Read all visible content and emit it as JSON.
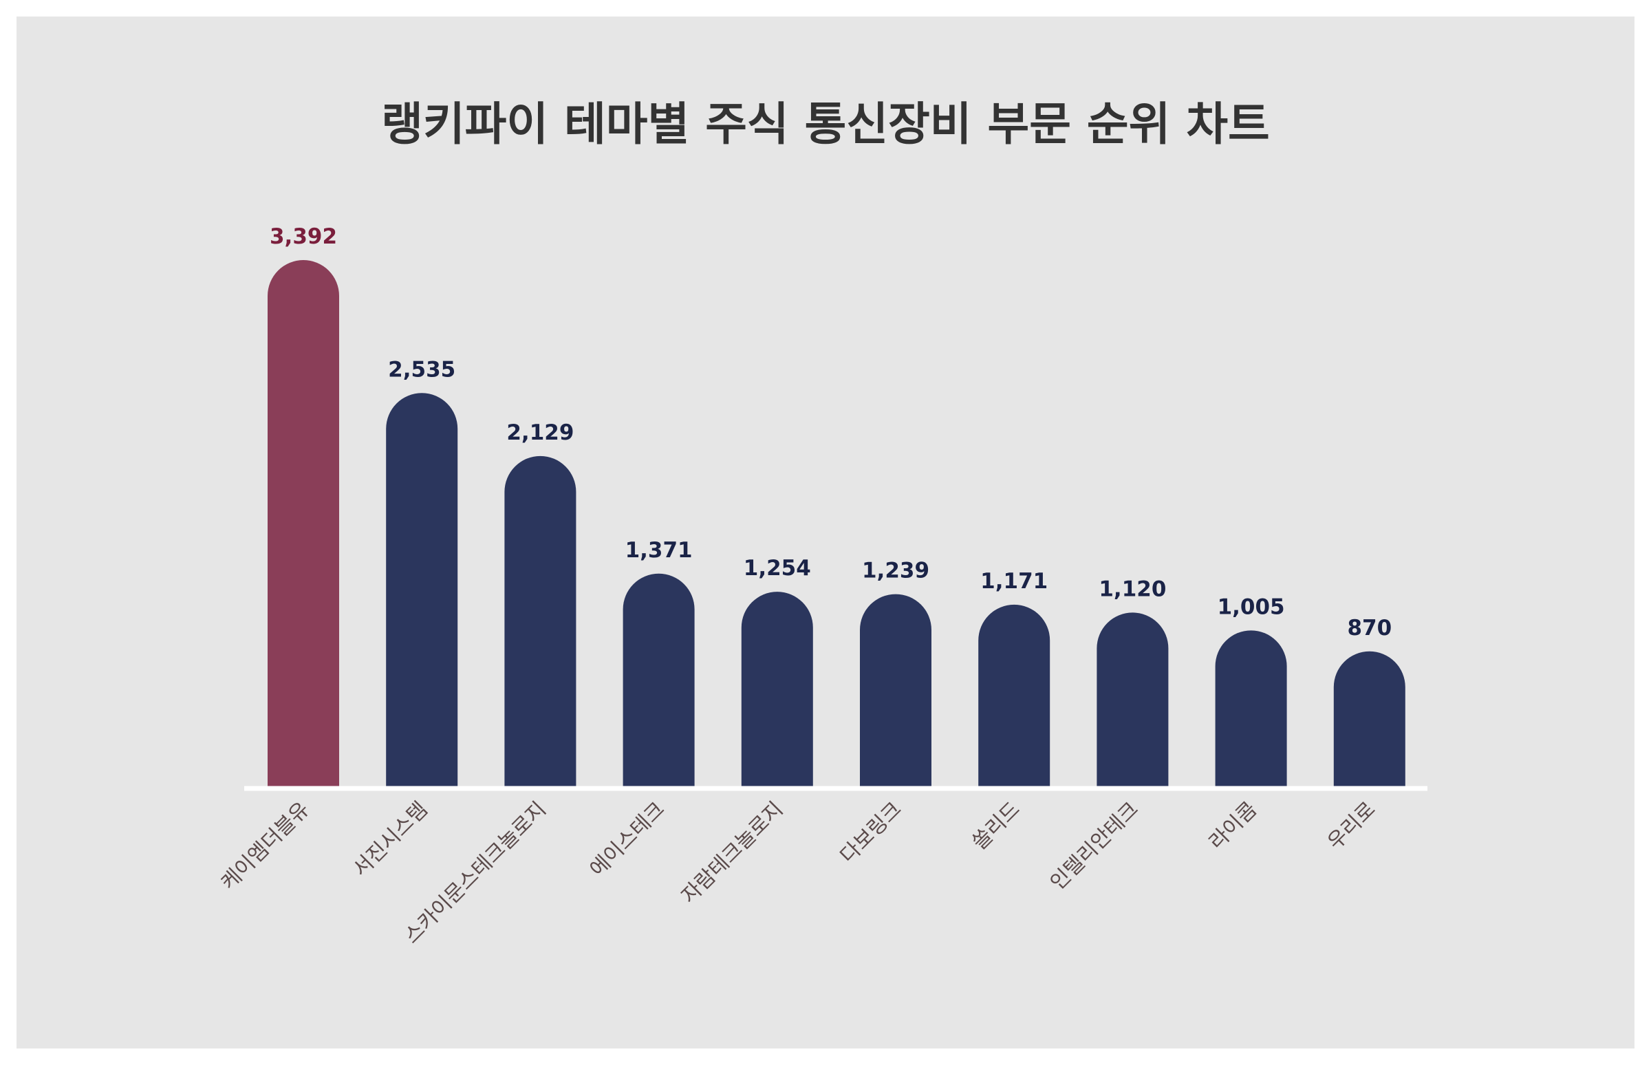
{
  "colors": {
    "background": "#e6e6e6",
    "highlight_bar": "#8a3e58",
    "bar": "#2b365d",
    "highlight_label": "#7a1e3c",
    "value_label": "#1a2347",
    "category_label": "#5a4a4a",
    "baseline": "#ffffff",
    "title": "#333333"
  },
  "chart_data": {
    "type": "bar",
    "title": "랭키파이 테마별 주식 통신장비 부문 순위 차트",
    "xlabel": "",
    "ylabel": "",
    "ylim": [
      0,
      3392
    ],
    "grid": false,
    "legend": "none",
    "highlight_index": 0,
    "categories": [
      "케이엠더블유",
      "서진시스템",
      "스카이문스테크놀로지",
      "에이스테크",
      "자람테크놀로지",
      "다보링크",
      "쏠리드",
      "인텔리안테크",
      "라이콤",
      "우리로"
    ],
    "values": [
      3392,
      2535,
      2129,
      1371,
      1254,
      1239,
      1171,
      1120,
      1005,
      870
    ],
    "value_labels": [
      "3,392",
      "2,535",
      "2,129",
      "1,371",
      "1,254",
      "1,239",
      "1,171",
      "1,120",
      "1,005",
      "870"
    ]
  }
}
